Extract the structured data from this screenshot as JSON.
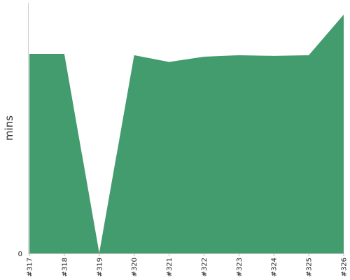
{
  "chart_data": {
    "type": "area",
    "ylabel": "mins",
    "x": [
      "#317",
      "#318",
      "#319",
      "#320",
      "#321",
      "#322",
      "#323",
      "#324",
      "#325",
      "#326"
    ],
    "y_tick_labels": [
      "0"
    ],
    "ylim": [
      0,
      100
    ],
    "grid": false,
    "series": [
      {
        "values": [
          79.6,
          79.6,
          0,
          79.1,
          76.4,
          78.5,
          79.1,
          78.8,
          79.1,
          95.3
        ],
        "color": "#439c6d"
      }
    ],
    "failed_build_color": "#5a5a5a",
    "failed_builds": [
      "#319"
    ]
  }
}
